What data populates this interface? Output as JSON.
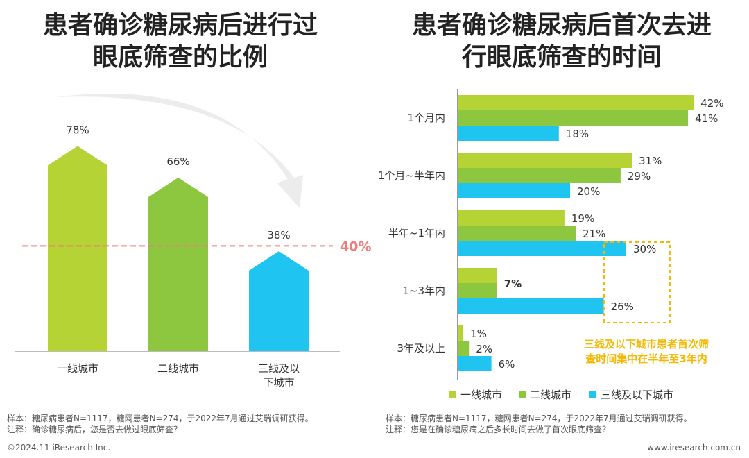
{
  "colors": {
    "tier1": "#B5D334",
    "tier2": "#8DC63F",
    "tier3": "#1FC5F0",
    "threshold": "#F07C7C",
    "callout": "#F5B800"
  },
  "left_title_lines": [
    "患者确诊糖尿病后进行过",
    "眼底筛查的比例"
  ],
  "right_title_lines": [
    "患者确诊糖尿病后首次去进",
    "行眼底筛查的时间"
  ],
  "chart_data": [
    {
      "type": "bar",
      "title": "患者确诊糖尿病后进行过眼底筛查的比例",
      "categories": [
        [
          "一线城市"
        ],
        [
          "二线城市"
        ],
        [
          "三线及以",
          "下城市"
        ]
      ],
      "values": [
        78,
        66,
        38
      ],
      "value_labels": [
        "78%",
        "66%",
        "38%"
      ],
      "colors": [
        "#B5D334",
        "#8DC63F",
        "#1FC5F0"
      ],
      "ylim": [
        0,
        90
      ],
      "threshold": {
        "value": 40,
        "label": "40%"
      }
    },
    {
      "type": "bar",
      "orientation": "horizontal",
      "title": "患者确诊糖尿病后首次去进行眼底筛查的时间",
      "categories": [
        "1个月内",
        "1个月~半年内",
        "半年~1年内",
        "1~3年内",
        "3年及以上"
      ],
      "series": [
        {
          "name": "一线城市",
          "values": [
            42,
            31,
            19,
            null,
            1
          ],
          "labels": [
            "42%",
            "31%",
            "19%",
            "",
            "1%"
          ],
          "color": "#B5D334"
        },
        {
          "name": "二线城市",
          "values": [
            41,
            29,
            21,
            null,
            2
          ],
          "labels": [
            "41%",
            "29%",
            "21%",
            "",
            "2%"
          ],
          "color": "#8DC63F"
        },
        {
          "name": "三线及以下城市",
          "values": [
            18,
            20,
            30,
            26,
            6
          ],
          "labels": [
            "18%",
            "20%",
            "30%",
            "26%",
            "6%"
          ],
          "color": "#1FC5F0"
        }
      ],
      "combined_bar": {
        "category_index": 3,
        "value": 7,
        "label": "7%"
      },
      "xlim": [
        0,
        45
      ],
      "callout": [
        "三线及以下城市患者首次筛",
        "查时间集中在半年至3年内"
      ]
    }
  ],
  "legend": [
    {
      "label": "一线城市",
      "color": "#B5D334"
    },
    {
      "label": "二线城市",
      "color": "#8DC63F"
    },
    {
      "label": "三线及以下城市",
      "color": "#1FC5F0"
    }
  ],
  "notes": {
    "left": [
      "样本：糖尿病患者N=1117，糖网患者N=274，于2022年7月通过艾瑞调研获得。",
      "注释：确诊糖尿病后，您是否去做过眼底筛查？"
    ],
    "right": [
      "样本：糖尿病患者N=1117，糖网患者N=274，于2022年7月通过艾瑞调研获得。",
      "注释：您是在确诊糖尿病之后多长时间去做了首次眼底筛查？"
    ]
  },
  "footer": {
    "left": "©2024.11 iResearch Inc.",
    "right": "www.iresearch.com.cn"
  }
}
